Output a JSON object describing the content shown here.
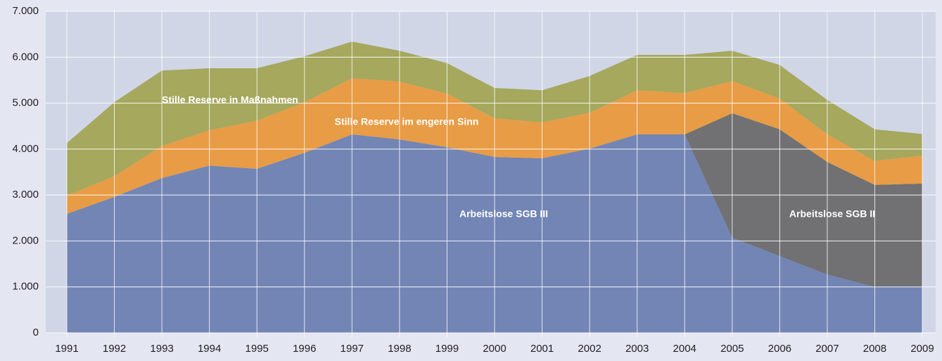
{
  "chart_data": {
    "type": "stacked-area",
    "categories": [
      "1991",
      "1992",
      "1993",
      "1994",
      "1995",
      "1996",
      "1997",
      "1998",
      "1999",
      "2000",
      "2001",
      "2002",
      "2003",
      "2004",
      "2005",
      "2006",
      "2007",
      "2008",
      "2009"
    ],
    "series": [
      {
        "name": "Arbeitslose SGB III",
        "color": "#7285b5",
        "values": [
          2590,
          2960,
          3370,
          3640,
          3570,
          3920,
          4320,
          4210,
          4040,
          3830,
          3800,
          4010,
          4320,
          4320,
          2070,
          1670,
          1270,
          1000,
          1000
        ]
      },
      {
        "name": "Arbeitslose SGB II",
        "color": "#717073",
        "values": [
          0,
          0,
          0,
          0,
          0,
          0,
          0,
          0,
          0,
          0,
          0,
          0,
          0,
          0,
          2710,
          2760,
          2450,
          2220,
          2250
        ]
      },
      {
        "name": "Stille Reserve im engeren Sinn",
        "color": "#e89c45",
        "values": [
          400,
          450,
          700,
          770,
          1050,
          1100,
          1220,
          1260,
          1170,
          840,
          780,
          780,
          960,
          900,
          700,
          670,
          600,
          520,
          610
        ]
      },
      {
        "name": "Stille Reserve in Maßnahmen",
        "color": "#a5a85d",
        "values": [
          1140,
          1610,
          1640,
          1350,
          1140,
          1000,
          800,
          670,
          660,
          660,
          700,
          800,
          770,
          830,
          660,
          730,
          750,
          690,
          470
        ]
      }
    ],
    "ylim": [
      0,
      7000
    ],
    "yticks": [
      0,
      {
        "value": 1000,
        "label": "1.000"
      },
      {
        "value": 2000,
        "label": "2.000"
      },
      {
        "value": 3000,
        "label": "3.000"
      },
      {
        "value": 4000,
        "label": "4.000"
      },
      {
        "value": 5000,
        "label": "5.000"
      },
      {
        "value": 6000,
        "label": "6.000"
      },
      {
        "value": 7000,
        "label": "7.000"
      }
    ],
    "grid": true
  }
}
